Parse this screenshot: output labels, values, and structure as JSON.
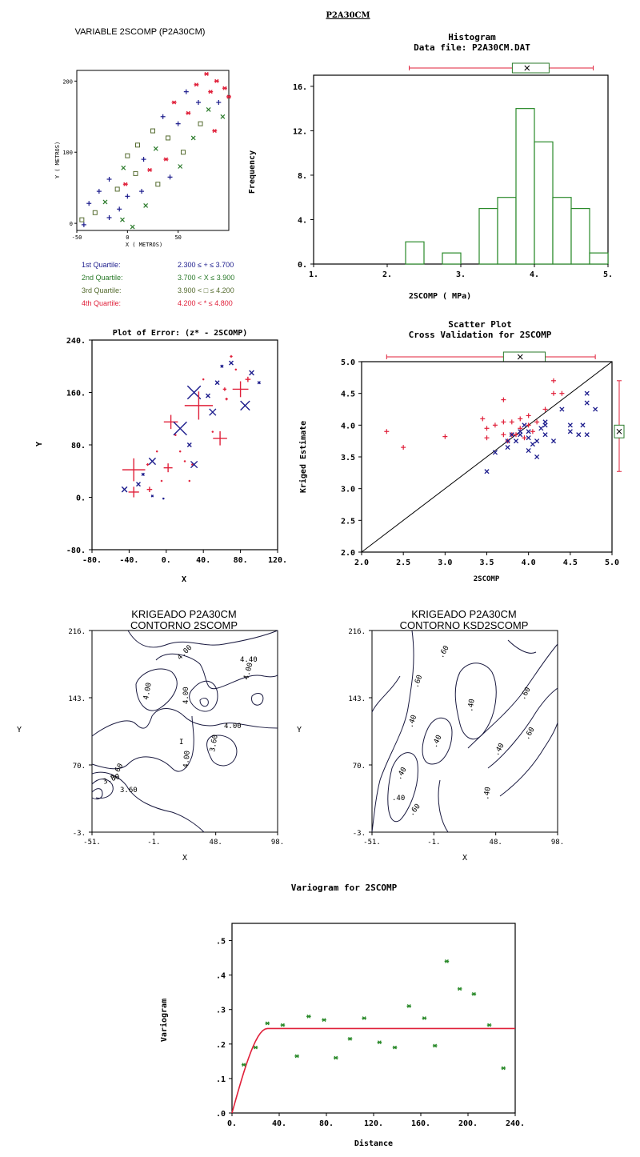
{
  "header": "P2A30CM",
  "colors": {
    "q1": "#1b1b8c",
    "q2": "#2a7a2a",
    "q3": "#556b2f",
    "q4": "#e0203a",
    "ink": "#000000",
    "green": "#2a8a2a",
    "red": "#e0203a",
    "blue": "#1b1b8c"
  },
  "chart_data": [
    {
      "id": "location_map",
      "type": "scatter",
      "title": "VARIABLE 2SCOMP (P2A30CM)",
      "xlabel": "X ( METROS)",
      "ylabel": "Y ( METROS)",
      "xticks": [
        "-50",
        "0",
        "50"
      ],
      "yticks": [
        "0",
        "100",
        "200"
      ],
      "xlim": [
        -50,
        100
      ],
      "ylim": [
        -10,
        215
      ],
      "legend": [
        {
          "label": "1st Quartile:",
          "range": "2.300 ≤ + ≤ 3.700",
          "symbol": "+",
          "color": "#1b1b8c"
        },
        {
          "label": "2nd Quartile:",
          "range": "3.700 < X ≤ 3.900",
          "symbol": "x",
          "color": "#2a7a2a"
        },
        {
          "label": "3rd Quartile:",
          "range": "3.900 < □ ≤ 4.200",
          "symbol": "□",
          "color": "#556b2f"
        },
        {
          "label": "4th Quartile:",
          "range": "4.200 < * ≤ 4.800",
          "symbol": "*",
          "color": "#e0203a"
        }
      ],
      "points": [
        {
          "x": -45,
          "y": 5,
          "q": 3
        },
        {
          "x": -43,
          "y": -2,
          "q": 1
        },
        {
          "x": -38,
          "y": 28,
          "q": 1
        },
        {
          "x": -32,
          "y": 15,
          "q": 3
        },
        {
          "x": -28,
          "y": 45,
          "q": 1
        },
        {
          "x": -22,
          "y": 30,
          "q": 2
        },
        {
          "x": -18,
          "y": 8,
          "q": 1
        },
        {
          "x": -18,
          "y": 62,
          "q": 1
        },
        {
          "x": -10,
          "y": 48,
          "q": 3
        },
        {
          "x": -8,
          "y": 20,
          "q": 1
        },
        {
          "x": -4,
          "y": 78,
          "q": 2
        },
        {
          "x": -2,
          "y": 55,
          "q": 4
        },
        {
          "x": 0,
          "y": 95,
          "q": 3
        },
        {
          "x": 0,
          "y": 38,
          "q": 1
        },
        {
          "x": 8,
          "y": 70,
          "q": 3
        },
        {
          "x": 10,
          "y": 110,
          "q": 3
        },
        {
          "x": 14,
          "y": 45,
          "q": 1
        },
        {
          "x": 16,
          "y": 90,
          "q": 1
        },
        {
          "x": 18,
          "y": 25,
          "q": 2
        },
        {
          "x": 25,
          "y": 130,
          "q": 3
        },
        {
          "x": 22,
          "y": 75,
          "q": 4
        },
        {
          "x": 28,
          "y": 105,
          "q": 2
        },
        {
          "x": 30,
          "y": 55,
          "q": 3
        },
        {
          "x": 35,
          "y": 150,
          "q": 1
        },
        {
          "x": 38,
          "y": 90,
          "q": 4
        },
        {
          "x": 40,
          "y": 120,
          "q": 3
        },
        {
          "x": 42,
          "y": 65,
          "q": 1
        },
        {
          "x": 46,
          "y": 170,
          "q": 4
        },
        {
          "x": 50,
          "y": 140,
          "q": 1
        },
        {
          "x": 52,
          "y": 80,
          "q": 2
        },
        {
          "x": 55,
          "y": 100,
          "q": 3
        },
        {
          "x": 58,
          "y": 185,
          "q": 1
        },
        {
          "x": 60,
          "y": 155,
          "q": 4
        },
        {
          "x": 65,
          "y": 120,
          "q": 2
        },
        {
          "x": 68,
          "y": 195,
          "q": 4
        },
        {
          "x": 70,
          "y": 170,
          "q": 1
        },
        {
          "x": 72,
          "y": 140,
          "q": 3
        },
        {
          "x": 78,
          "y": 210,
          "q": 4
        },
        {
          "x": 80,
          "y": 160,
          "q": 2
        },
        {
          "x": 82,
          "y": 185,
          "q": 4
        },
        {
          "x": 86,
          "y": 130,
          "q": 4
        },
        {
          "x": 88,
          "y": 200,
          "q": 4
        },
        {
          "x": 90,
          "y": 170,
          "q": 1
        },
        {
          "x": 94,
          "y": 150,
          "q": 2
        },
        {
          "x": 96,
          "y": 190,
          "q": 4
        },
        {
          "x": 100,
          "y": 178,
          "q": 4
        },
        {
          "x": -5,
          "y": 5,
          "q": 2
        },
        {
          "x": 5,
          "y": -5,
          "q": 2
        }
      ]
    },
    {
      "id": "histogram",
      "type": "bar",
      "title": "Histogram",
      "subtitle": "Data file: P2A30CM.DAT",
      "xlabel": "2SCOMP (          MPa)",
      "ylabel": "Frequency",
      "xlim": [
        1,
        5
      ],
      "ylim": [
        0,
        17
      ],
      "xticks": [
        "1.",
        "2.",
        "3.",
        "4.",
        "5."
      ],
      "yticks": [
        "0.",
        "4.",
        "8.",
        "12.",
        "16."
      ],
      "bin_width": 0.25,
      "bins": [
        2.25,
        2.75,
        3.25,
        3.5,
        3.75,
        4.0,
        4.25,
        4.5,
        4.75
      ],
      "values": [
        2,
        1,
        5,
        6,
        14,
        11,
        6,
        5,
        1
      ],
      "boxplot": {
        "min": 2.3,
        "q1": 3.7,
        "median": 3.9,
        "q3": 4.2,
        "max": 4.8
      }
    },
    {
      "id": "error_plot",
      "type": "scatter",
      "title": "Plot of Error: (z* - 2SCOMP)",
      "xlabel": "X",
      "ylabel": "Y",
      "xlim": [
        -80,
        120
      ],
      "ylim": [
        -80,
        240
      ],
      "xticks": [
        "-80.",
        "-40.",
        "0.",
        "40.",
        "80.",
        "120."
      ],
      "yticks": [
        "-80.",
        "0.",
        "80.",
        "160.",
        "240."
      ],
      "points": [
        {
          "x": -45,
          "y": 12,
          "e": -0.4
        },
        {
          "x": -35,
          "y": 8,
          "e": 0.6
        },
        {
          "x": -30,
          "y": 20,
          "e": -0.3
        },
        {
          "x": -35,
          "y": 42,
          "e": 1.3
        },
        {
          "x": -25,
          "y": 35,
          "e": -0.2
        },
        {
          "x": -20,
          "y": 50,
          "e": 0.15
        },
        {
          "x": -15,
          "y": 55,
          "e": -0.5
        },
        {
          "x": -10,
          "y": 70,
          "e": 0.1
        },
        {
          "x": -18,
          "y": 12,
          "e": 0.3
        },
        {
          "x": -15,
          "y": 2,
          "e": -0.15
        },
        {
          "x": -5,
          "y": 25,
          "e": 0.1
        },
        {
          "x": -3,
          "y": -2,
          "e": -0.1
        },
        {
          "x": 2,
          "y": 45,
          "e": 0.5
        },
        {
          "x": 5,
          "y": 115,
          "e": 0.8
        },
        {
          "x": 10,
          "y": 95,
          "e": 0.1
        },
        {
          "x": 15,
          "y": 105,
          "e": -1.0
        },
        {
          "x": 15,
          "y": 70,
          "e": 0.1
        },
        {
          "x": 20,
          "y": 55,
          "e": 0.05
        },
        {
          "x": 25,
          "y": 80,
          "e": -0.3
        },
        {
          "x": 25,
          "y": 25,
          "e": 0.05
        },
        {
          "x": 28,
          "y": 50,
          "e": 0.05
        },
        {
          "x": 30,
          "y": 160,
          "e": -1.0
        },
        {
          "x": 30,
          "y": 50,
          "e": -0.5
        },
        {
          "x": 35,
          "y": 140,
          "e": 1.6
        },
        {
          "x": 40,
          "y": 180,
          "e": 0.1
        },
        {
          "x": 45,
          "y": 155,
          "e": -0.3
        },
        {
          "x": 50,
          "y": 130,
          "e": -0.5
        },
        {
          "x": 50,
          "y": 100,
          "e": 0.1
        },
        {
          "x": 55,
          "y": 175,
          "e": -0.3
        },
        {
          "x": 58,
          "y": 90,
          "e": 0.8
        },
        {
          "x": 60,
          "y": 200,
          "e": -0.2
        },
        {
          "x": 63,
          "y": 165,
          "e": 0.2
        },
        {
          "x": 65,
          "y": 150,
          "e": 0.15
        },
        {
          "x": 70,
          "y": 215,
          "e": 0.15
        },
        {
          "x": 75,
          "y": 195,
          "e": 0.1
        },
        {
          "x": 80,
          "y": 165,
          "e": 0.9
        },
        {
          "x": 85,
          "y": 140,
          "e": -0.7
        },
        {
          "x": 88,
          "y": 180,
          "e": 0.3
        },
        {
          "x": 92,
          "y": 190,
          "e": -0.35
        },
        {
          "x": 100,
          "y": 175,
          "e": -0.2
        },
        {
          "x": 70,
          "y": 205,
          "e": -0.3
        }
      ]
    },
    {
      "id": "cross_validation",
      "type": "scatter",
      "title": "Scatter Plot",
      "subtitle": "Cross Validation for 2SCOMP",
      "xlabel": "2SCOMP",
      "ylabel": "Kriged Estimate",
      "xlim": [
        2,
        5
      ],
      "ylim": [
        2,
        5
      ],
      "xticks": [
        "2.0",
        "2.5",
        "3.0",
        "3.5",
        "4.0",
        "4.5",
        "5.0"
      ],
      "yticks": [
        "2.0",
        "2.5",
        "3.0",
        "3.5",
        "4.0",
        "4.5",
        "5.0"
      ],
      "boxplot_x": {
        "min": 2.3,
        "q1": 3.7,
        "median": 3.9,
        "q3": 4.2,
        "max": 4.8
      },
      "boxplot_y": {
        "min": 3.27,
        "q1": 3.8,
        "median": 3.9,
        "q3": 4.0,
        "max": 4.7
      },
      "points_plus": [
        [
          2.3,
          3.9
        ],
        [
          2.5,
          3.65
        ],
        [
          3.0,
          3.82
        ],
        [
          3.45,
          4.1
        ],
        [
          3.5,
          3.95
        ],
        [
          3.5,
          3.8
        ],
        [
          3.6,
          4.0
        ],
        [
          3.7,
          4.4
        ],
        [
          3.7,
          4.05
        ],
        [
          3.7,
          3.85
        ],
        [
          3.75,
          3.75
        ],
        [
          3.8,
          3.85
        ],
        [
          3.8,
          4.05
        ],
        [
          3.9,
          4.1
        ],
        [
          3.9,
          3.95
        ],
        [
          4.0,
          4.0
        ],
        [
          4.0,
          4.15
        ],
        [
          4.05,
          3.9
        ],
        [
          4.1,
          4.05
        ],
        [
          4.2,
          4.25
        ],
        [
          4.3,
          4.5
        ],
        [
          4.3,
          4.7
        ],
        [
          4.4,
          4.5
        ],
        [
          3.85,
          3.85
        ],
        [
          3.95,
          3.8
        ]
      ],
      "points_x": [
        [
          3.5,
          3.27
        ],
        [
          3.6,
          3.57
        ],
        [
          3.75,
          3.65
        ],
        [
          3.75,
          3.75
        ],
        [
          3.8,
          3.85
        ],
        [
          3.85,
          3.75
        ],
        [
          3.9,
          3.85
        ],
        [
          3.9,
          3.9
        ],
        [
          3.95,
          4.0
        ],
        [
          4.0,
          3.6
        ],
        [
          4.0,
          3.8
        ],
        [
          4.0,
          3.9
        ],
        [
          4.05,
          3.7
        ],
        [
          4.1,
          3.5
        ],
        [
          4.1,
          3.75
        ],
        [
          4.15,
          3.95
        ],
        [
          4.2,
          3.85
        ],
        [
          4.2,
          4.0
        ],
        [
          4.2,
          4.05
        ],
        [
          4.3,
          3.75
        ],
        [
          4.4,
          4.25
        ],
        [
          4.5,
          3.9
        ],
        [
          4.5,
          4.0
        ],
        [
          4.6,
          3.85
        ],
        [
          4.65,
          4.0
        ],
        [
          4.7,
          3.85
        ],
        [
          4.7,
          4.35
        ],
        [
          4.7,
          4.5
        ],
        [
          4.8,
          4.25
        ]
      ]
    },
    {
      "id": "contour_2scomp",
      "type": "contour",
      "title": "KRIGEADO P2A30CM",
      "subtitle": "CONTORNO 2SCOMP",
      "xlabel": "X",
      "ylabel": "Y",
      "xticks": [
        "-51.",
        "-1.",
        "48.",
        "98."
      ],
      "yticks": [
        "-3.",
        "70.",
        "143.",
        "216."
      ],
      "contour_labels": [
        "4.40",
        "4.00",
        "4.00",
        "4.00",
        "4.00",
        "4.00",
        "3.60",
        "4.00",
        "3.60",
        "3.60",
        "3.60"
      ]
    },
    {
      "id": "contour_ksd",
      "type": "contour",
      "title": "KRIGEADO P2A30CM",
      "subtitle": "CONTORNO KSD2SCOMP",
      "xlabel": "X",
      "ylabel": "Y",
      "xticks": [
        "-51.",
        "-1.",
        "48.",
        "98."
      ],
      "yticks": [
        "-3.",
        "70.",
        "143.",
        "216."
      ],
      "contour_labels": [
        ".60",
        ".40",
        ".60",
        ".40",
        ".40",
        ".40",
        ".40",
        ".40",
        ".60",
        ".60",
        ".60",
        ".40"
      ]
    },
    {
      "id": "variogram",
      "type": "scatter",
      "title": "Variogram for 2SCOMP",
      "xlabel": "Distance",
      "ylabel": "Variogram",
      "xlim": [
        0,
        240
      ],
      "ylim": [
        0,
        0.55
      ],
      "xticks": [
        "0.",
        "40.",
        "80.",
        "120.",
        "160.",
        "200.",
        "240."
      ],
      "yticks": [
        ".0",
        ".1",
        ".2",
        ".3",
        ".4",
        ".5"
      ],
      "points": [
        [
          10,
          0.14
        ],
        [
          20,
          0.19
        ],
        [
          30,
          0.26
        ],
        [
          43,
          0.255
        ],
        [
          55,
          0.165
        ],
        [
          65,
          0.28
        ],
        [
          78,
          0.27
        ],
        [
          88,
          0.16
        ],
        [
          100,
          0.215
        ],
        [
          112,
          0.275
        ],
        [
          125,
          0.205
        ],
        [
          138,
          0.19
        ],
        [
          150,
          0.31
        ],
        [
          163,
          0.275
        ],
        [
          172,
          0.195
        ],
        [
          182,
          0.44
        ],
        [
          193,
          0.36
        ],
        [
          205,
          0.345
        ],
        [
          218,
          0.255
        ],
        [
          230,
          0.13
        ]
      ],
      "model": {
        "type": "spherical",
        "nugget": 0,
        "sill": 0.245,
        "range": 30
      }
    }
  ]
}
